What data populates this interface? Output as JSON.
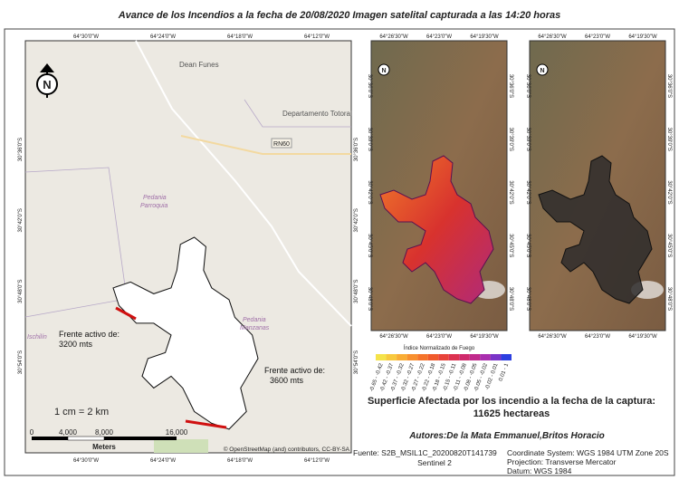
{
  "title": "Avance de los Incendios a la fecha de  20/08/2020 Imagen satelital capturada a las 14:20 horas",
  "left_map": {
    "top_labels": [
      "64°30'0\"W",
      "64°24'0\"W",
      "64°18'0\"W",
      "64°12'0\"W"
    ],
    "bottom_labels": [
      "64°30'0\"W",
      "64°24'0\"W",
      "64°18'0\"W",
      "64°12'0\"W"
    ],
    "side_labels": [
      "30°36'0\"S",
      "30°42'0\"S",
      "30°48'0\"S",
      "30°54'0\"S"
    ],
    "places": [
      "Dean Funes",
      "Departamento Totoral",
      "RN60",
      "Pedania",
      "Parroquia",
      "Pedania",
      "Manzanas",
      "Ischilín"
    ],
    "front_1": [
      "Frente activo de:",
      "3200 mts"
    ],
    "front_2": [
      "Frente activo de:",
      "3600 mts"
    ],
    "scale_text": "1 cm = 2 km",
    "scale_ticks": [
      "0",
      "4,000",
      "8,000",
      "16,000"
    ],
    "scale_unit": "Meters",
    "attribution": "© OpenStreetMap (and) contributors, CC-BY-SA"
  },
  "satellite_maps": {
    "top_labels": [
      "64°26'30\"W",
      "64°23'0\"W",
      "64°19'30\"W"
    ],
    "bottom_labels": [
      "64°26'30\"W",
      "64°23'0\"W",
      "64°19'30\"W"
    ],
    "side_labels": [
      "30°36'0\"S",
      "30°39'0\"S",
      "30°42'0\"S",
      "30°45'0\"S",
      "30°48'0\"S"
    ]
  },
  "legend": {
    "title": "Índice Normalizado de Fuego",
    "classes": [
      "-0.65 - -0.42",
      "-0.42 - -0.37",
      "-0.37 - -0.32",
      "-0.32 - -0.27",
      "-0.27 - -0.22",
      "-0.22 - -0.18",
      "-0.18 - -0.15",
      "-0.15 - -0.11",
      "-0.11 - -0.08",
      "-0.08 - -0.05",
      "-0.05 - -0.02",
      "-0.02 - 0.01",
      "0.01 - 1"
    ],
    "colors": [
      "#f5e34a",
      "#f8c93e",
      "#f9ad35",
      "#f8902f",
      "#f5742b",
      "#f05a2c",
      "#e8433a",
      "#dc3250",
      "#cf2a6c",
      "#c02a8c",
      "#a92fae",
      "#7a34c8",
      "#2c3fe0"
    ]
  },
  "area": [
    "Superficie Afectada por los incendio a la fecha de la captura:",
    "11625 hectareas"
  ],
  "authors": "Autores:De la Mata Emmanuel,Britos Horacio",
  "source": [
    "Fuente: S2B_MSIL1C_20200820T141739",
    "Sentinel 2"
  ],
  "crs": [
    "Coordinate System: WGS 1984 UTM Zone 20S",
    "Projection: Transverse Mercator",
    "Datum: WGS 1984"
  ]
}
